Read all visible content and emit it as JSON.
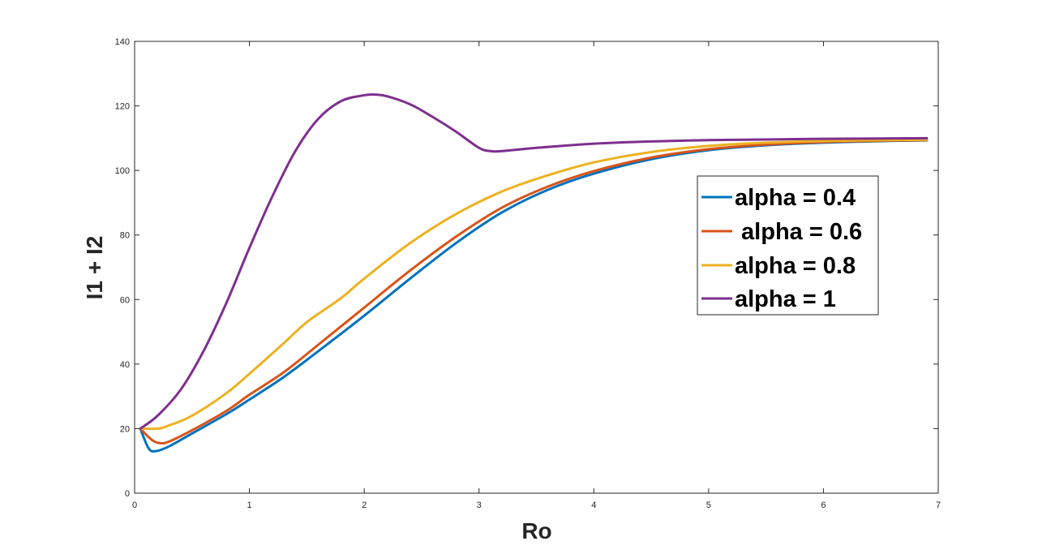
{
  "chart_data": {
    "type": "line",
    "title": "",
    "xlabel": "Ro",
    "ylabel": "I1 + I2",
    "xlim": [
      0,
      7
    ],
    "ylim": [
      0,
      140
    ],
    "xticks": [
      0,
      1,
      2,
      3,
      4,
      5,
      6,
      7
    ],
    "yticks": [
      0,
      20,
      40,
      60,
      80,
      100,
      120,
      140
    ],
    "grid": false,
    "legend_placement": "right",
    "series": [
      {
        "name": "alpha = 0.4",
        "color": "#0072BD",
        "x": [
          0.05,
          0.12,
          0.18,
          0.3,
          0.5,
          0.8,
          1.0,
          1.3,
          1.6,
          2.0,
          2.4,
          2.8,
          3.2,
          3.6,
          4.0,
          4.5,
          5.0,
          5.5,
          6.0,
          6.5,
          6.9
        ],
        "y": [
          20,
          14,
          13,
          14.5,
          18.5,
          24.5,
          29,
          36,
          44,
          55,
          66.5,
          77.5,
          87,
          94,
          99,
          103.5,
          106.3,
          107.8,
          108.6,
          109.1,
          109.3
        ]
      },
      {
        "name": " alpha = 0.6",
        "color": "#D95319",
        "x": [
          0.05,
          0.15,
          0.22,
          0.3,
          0.5,
          0.8,
          1.0,
          1.3,
          1.6,
          2.0,
          2.4,
          2.8,
          3.2,
          3.6,
          4.0,
          4.5,
          5.0,
          5.5,
          6.0,
          6.5,
          6.9
        ],
        "y": [
          20,
          16.5,
          15.5,
          16,
          19.5,
          25.5,
          30.5,
          37.5,
          46,
          57.5,
          69,
          79.5,
          88.5,
          95,
          99.8,
          104,
          106.6,
          108,
          108.8,
          109.2,
          109.4
        ]
      },
      {
        "name": "alpha = 0.8",
        "color": "#EDB120",
        "x": [
          0.05,
          0.2,
          0.3,
          0.5,
          0.8,
          1.0,
          1.3,
          1.5,
          1.8,
          2.0,
          2.4,
          2.8,
          3.2,
          3.6,
          4.0,
          4.5,
          5.0,
          5.5,
          6.0,
          6.5,
          6.9
        ],
        "y": [
          20,
          20,
          21,
          24,
          31,
          37,
          46.5,
          53,
          60.5,
          66.5,
          77.5,
          86.5,
          93.5,
          98.5,
          102.5,
          105.7,
          107.6,
          108.6,
          109.1,
          109.4,
          109.5
        ]
      },
      {
        "name": "alpha = 1",
        "color": "#7E2F8E",
        "x": [
          0.05,
          0.2,
          0.4,
          0.6,
          0.8,
          1.0,
          1.2,
          1.4,
          1.6,
          1.8,
          2.0,
          2.1,
          2.2,
          2.4,
          2.6,
          2.8,
          3.0,
          3.1,
          3.2,
          3.5,
          4.0,
          4.5,
          5.0,
          5.5,
          6.0,
          6.5,
          6.9
        ],
        "y": [
          20,
          24,
          32,
          44,
          59,
          76,
          92,
          106,
          116,
          121.5,
          123.3,
          123.5,
          123,
          120.5,
          116.5,
          112,
          107,
          106,
          106,
          107,
          108.3,
          109,
          109.4,
          109.6,
          109.8,
          109.9,
          110
        ]
      }
    ]
  }
}
